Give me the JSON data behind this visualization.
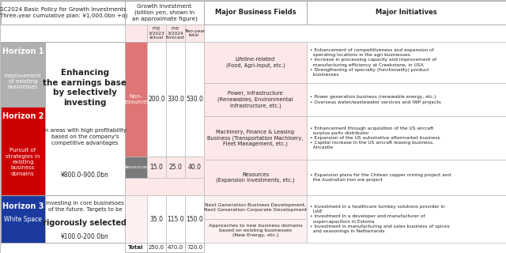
{
  "title_left": "GC2024 Basic Policy for Growth Investments\n(Three-year cumulative plan: ¥1,000.0bn +α)",
  "title_growth": "Growth Investment\n(billion yen, shown in\nan approximate figure)",
  "title_business": "Major Business Fields",
  "title_initiatives": "Major Initiatives",
  "h1_label": "Horizon 1",
  "h1_sublabel": "Improvement\nof existing\nbusinesses",
  "h1_color": "#b0b0b0",
  "h2_label": "Horizon 2",
  "h2_sublabel": "Pursuit of\nstrategies in\nexisting\nbusiness\ndomains",
  "h2_color": "#cc0000",
  "h3_label": "Horizon 3",
  "h3_sublabel": "White Space",
  "h3_color": "#1a3a9e",
  "h12_bold_text": "Enhancing\nthe earnings base\nby selectively\ninvesting",
  "h12_normal_text": "in areas with high profitability\nbased on the company's\ncompetitive advantages",
  "h12_amount": "¥800.0-900.0bn",
  "h3_normal_text": "Investing in core businesses\nof the future. Targets to be",
  "h3_bold_text": "rigorously selected",
  "h3_amount": "¥100.0-200.0bn",
  "fye_headers": [
    "FYE\n3/2023\nactual",
    "FYE\n3/2024\nforecast",
    "Two-year\ntotal"
  ],
  "non_res_label": "Non-\nresources",
  "non_res_color": "#e07575",
  "res_label": "Resources",
  "res_color": "#7a7a7a",
  "h12_vals": [
    "200.0",
    "330.0",
    "530.0"
  ],
  "res_vals": [
    "15.0",
    "25.0",
    "40.0"
  ],
  "h3_vals": [
    "35.0",
    "115.0",
    "150.0"
  ],
  "total_label": "Total",
  "total_vals": [
    "250.0",
    "470.0",
    "720.0"
  ],
  "h1_business_fields": [
    "Lifeline-related\n(Food, Agri-input, etc.)",
    "Power, Infrastructure\n(Renewables, Environmental\nInfrastructure, etc.)",
    "Machinery, Finance & Leasing\nBusiness (Transportation Machinery,\nFleet Management, etc.)",
    "Resources\n(Expansion Investments, etc.)"
  ],
  "h1_initiatives": [
    "• Enhancement of competitiveness and expansion of\n  operating locations in the agri businesses\n• Increase in processing capacity and improvement of\n  manufacturing efficiency at Creekstone, in USA\n• Strengthening of specialty (functionality) product\n  businesses",
    "• Power generation business (renewable energy, etc.)\n• Overseas water/wastewater services and IWP projects",
    "• Enhancement through acquisition of the US aircraft\n  surplus parts distributor\n• Expansion of the US automotive aftermarket business\n• Capital increase in the US aircraft leasing business,\n  Aircastle",
    "• Expansion plans for the Chilean copper mining project and\n  the Australian iron ore project"
  ],
  "h3_business_fields": [
    "Next Generation Business Development,\nNext Generation Corporate Development",
    "Approaches to new business domains\nbased on existing businesses\n(New Energy, etc.)"
  ],
  "h3_initiatives": "• Investment in a healthcare turnkey solutions provider in\n  UAE\n• Investment in a developer and manufacturer of\n  supercapacitors in Estonia\n• Investment in manufacturing and sales business of spices\n  and seasonings in Netherlands",
  "bg_pink": "#fce8e8",
  "bg_lpink": "#fdf0f0",
  "col_border": "#bbbbbb",
  "text_dark": "#222222",
  "white": "#ffffff"
}
